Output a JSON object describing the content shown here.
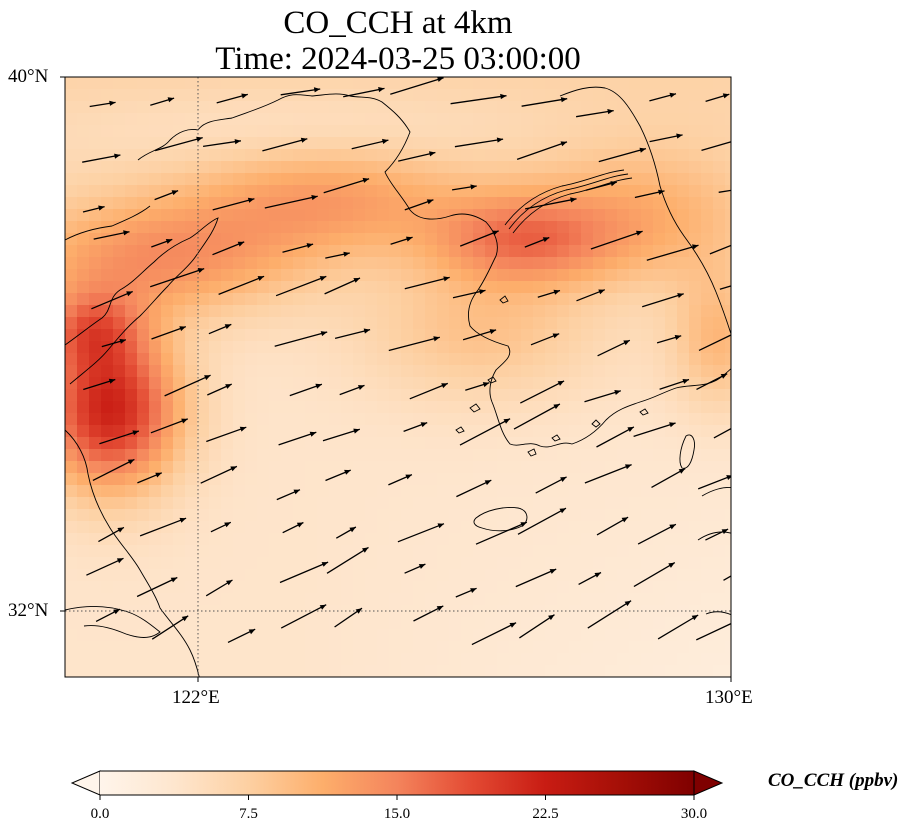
{
  "title": {
    "line1": "CO_CCH at 4km",
    "line2": "Time: 2024-03-25 03:00:00"
  },
  "axes": {
    "lat_ticks": [
      "40°N",
      "32°N"
    ],
    "lon_ticks": [
      "122°E",
      "130°E"
    ],
    "extent": {
      "lon": [
        120,
        130
      ],
      "lat": [
        31,
        40
      ]
    },
    "gridlines": "dotted"
  },
  "colorbar": {
    "label": "CO_CCH (ppbv)",
    "ticks": [
      "0.0",
      "7.5",
      "15.0",
      "22.5",
      "30.0"
    ],
    "range": [
      0,
      30
    ],
    "extend": "both",
    "colors": [
      "#fff5eb",
      "#fee6ce",
      "#fdd0a2",
      "#fdae6b",
      "#f4845c",
      "#e34a33",
      "#c81c13",
      "#a50f07",
      "#7f0000"
    ]
  },
  "map": {
    "variable": "CO_CCH",
    "level": "4km",
    "colormap": "OrRd",
    "overlay": "wind vectors"
  }
}
